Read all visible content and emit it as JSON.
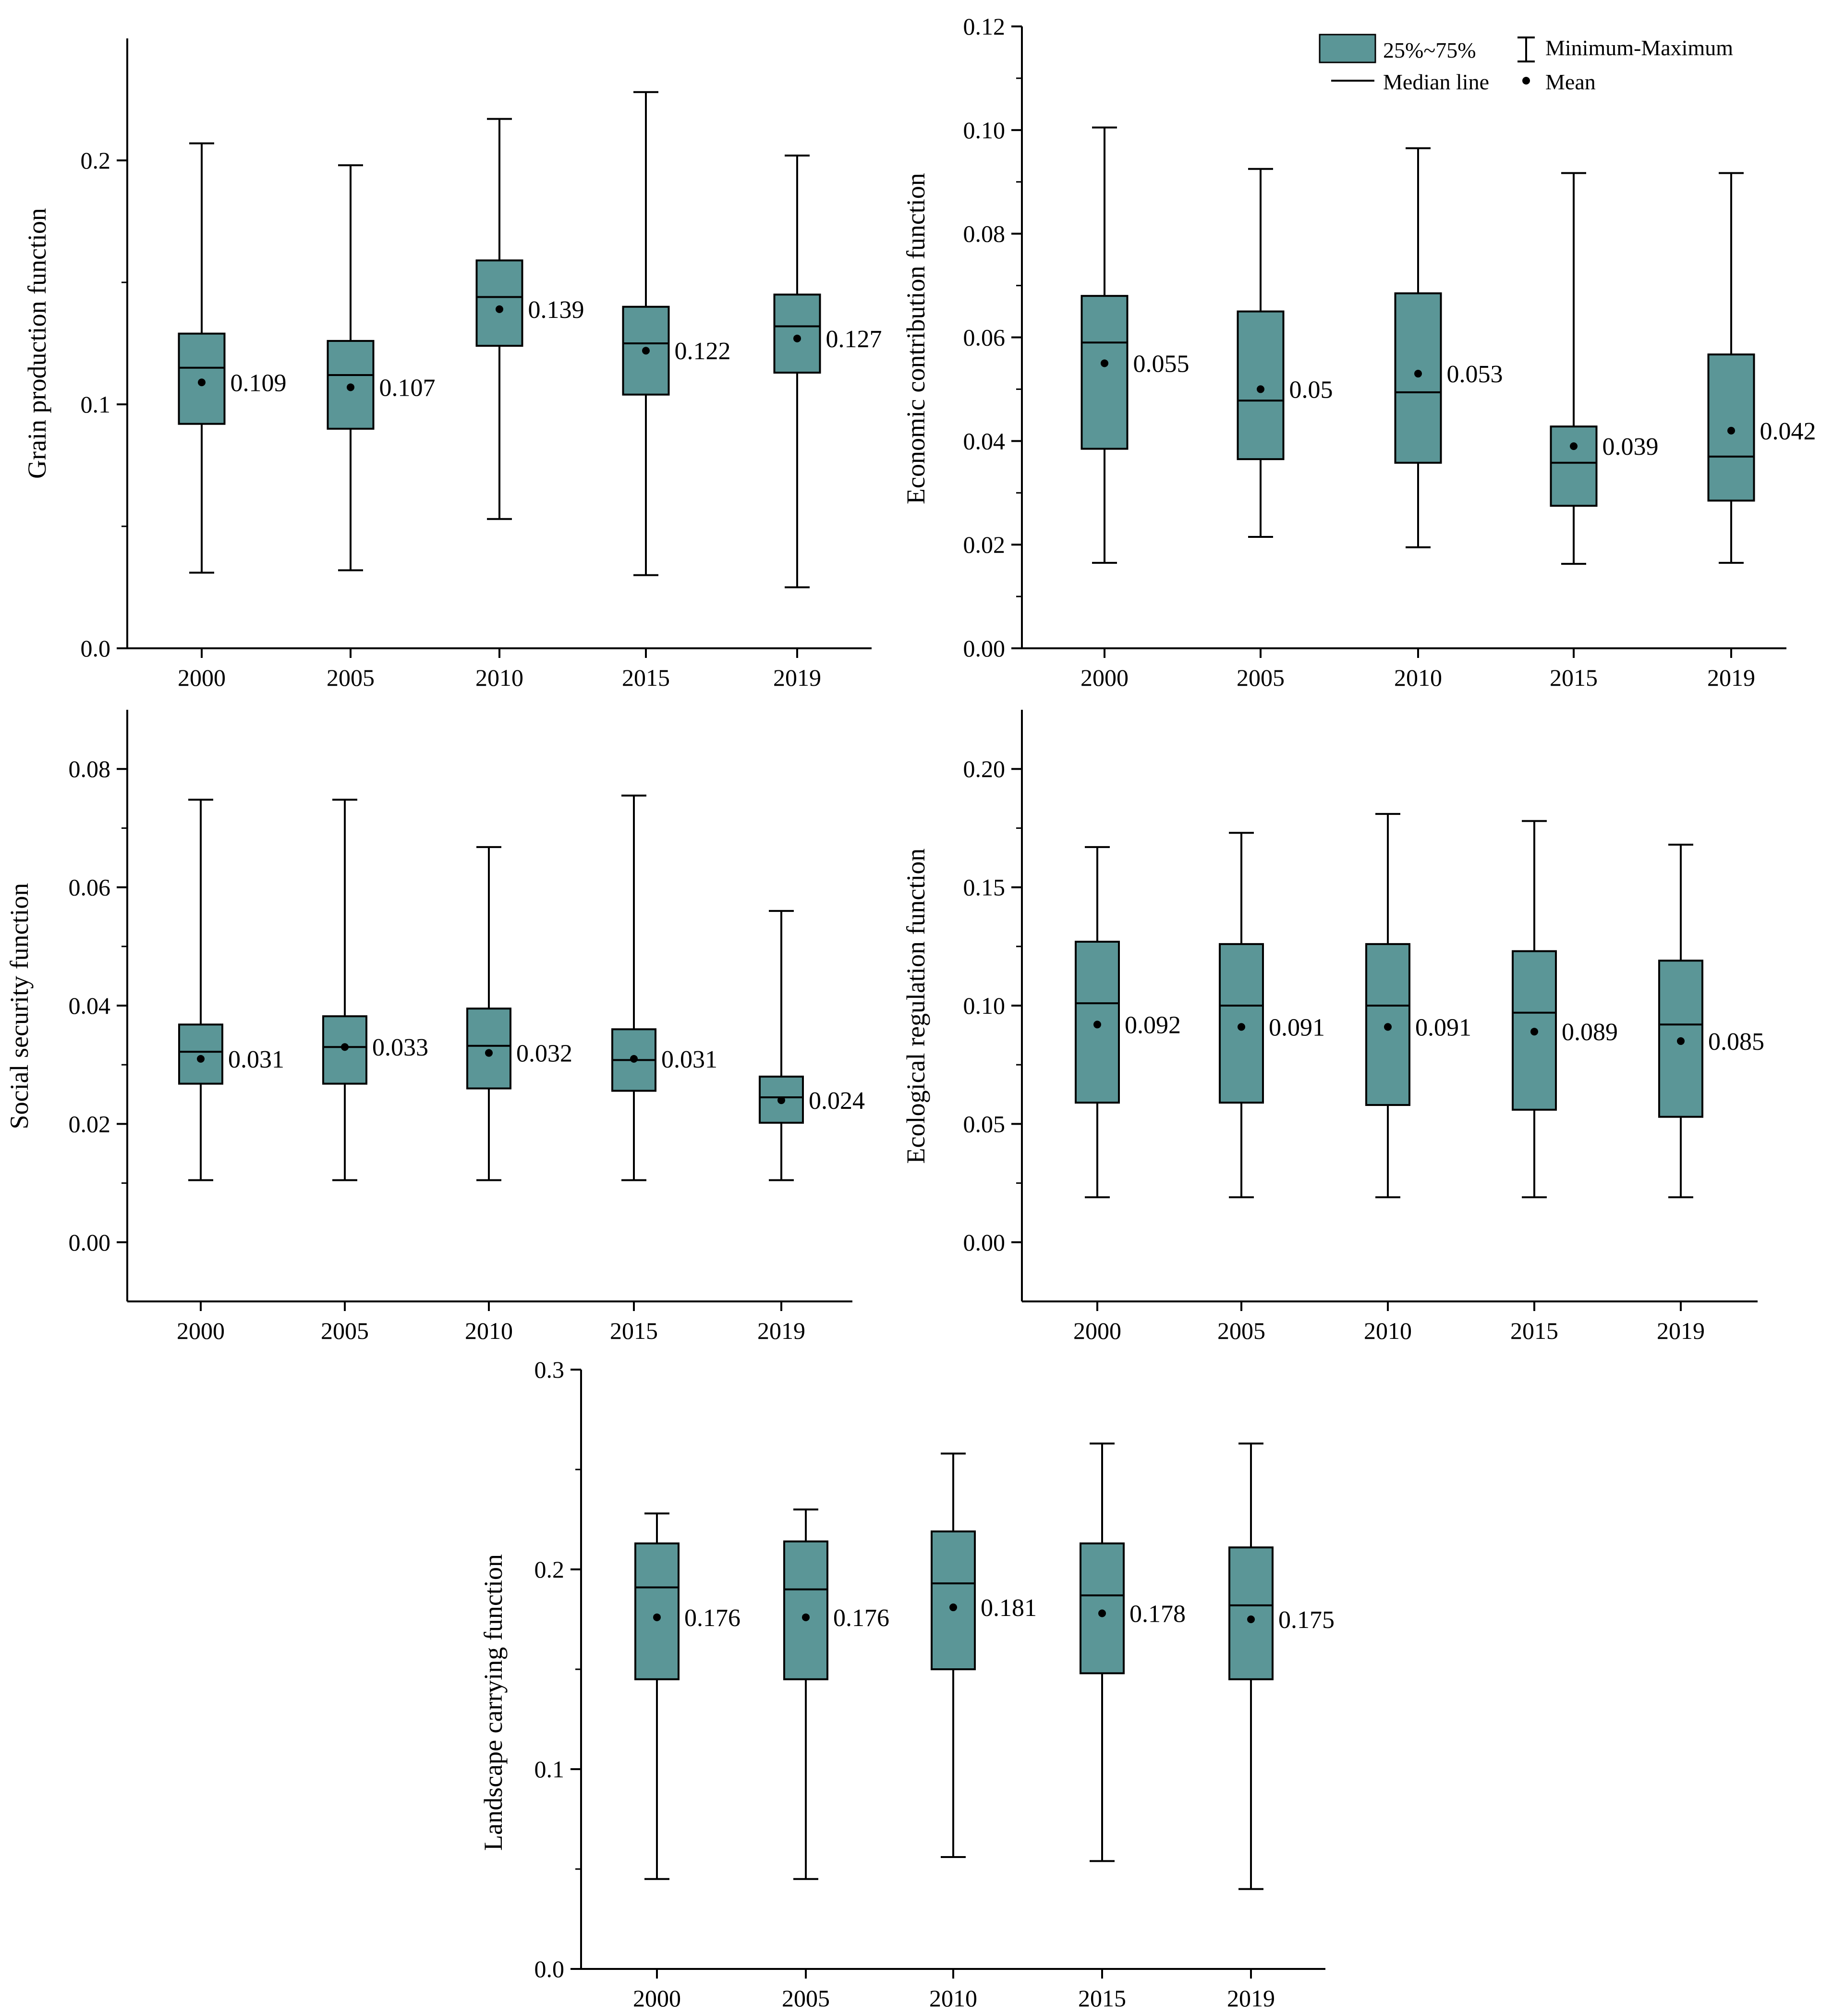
{
  "colors": {
    "box_fill": "#5B9697",
    "stroke": "#000000",
    "background": "#ffffff"
  },
  "legend": {
    "box_label": "25%~75%",
    "range_label": "Minimum-Maximum",
    "median_label": "Median line",
    "mean_label": "Mean"
  },
  "chart_data": [
    {
      "type": "box",
      "ylabel": "Grain production function",
      "categories": [
        "2000",
        "2005",
        "2010",
        "2015",
        "2019"
      ],
      "ylim": [
        0,
        0.25
      ],
      "yticks": [
        0.0,
        0.1,
        0.2
      ],
      "ytick_labels": [
        "0.0",
        "0.1",
        "0.2"
      ],
      "ytick_minor": [
        0.05,
        0.15
      ],
      "boxes": [
        {
          "min": 0.031,
          "q1": 0.092,
          "median": 0.115,
          "q3": 0.129,
          "max": 0.207,
          "mean": 0.109,
          "mean_label": "0.109"
        },
        {
          "min": 0.032,
          "q1": 0.09,
          "median": 0.112,
          "q3": 0.126,
          "max": 0.198,
          "mean": 0.107,
          "mean_label": "0.107"
        },
        {
          "min": 0.053,
          "q1": 0.124,
          "median": 0.144,
          "q3": 0.159,
          "max": 0.217,
          "mean": 0.139,
          "mean_label": "0.139"
        },
        {
          "min": 0.03,
          "q1": 0.104,
          "median": 0.125,
          "q3": 0.14,
          "max": 0.228,
          "mean": 0.122,
          "mean_label": "0.122"
        },
        {
          "min": 0.025,
          "q1": 0.113,
          "median": 0.132,
          "q3": 0.145,
          "max": 0.202,
          "mean": 0.127,
          "mean_label": "0.127"
        }
      ]
    },
    {
      "type": "box",
      "ylabel": "Economic contribution function",
      "categories": [
        "2000",
        "2005",
        "2010",
        "2015",
        "2019"
      ],
      "ylim": [
        0,
        0.12
      ],
      "yticks": [
        0.0,
        0.02,
        0.04,
        0.06,
        0.08,
        0.1,
        0.12
      ],
      "ytick_labels": [
        "0.00",
        "0.02",
        "0.04",
        "0.06",
        "0.08",
        "0.10",
        "0.12"
      ],
      "ytick_minor": [
        0.01,
        0.03,
        0.05,
        0.07,
        0.09,
        0.11
      ],
      "boxes": [
        {
          "min": 0.0165,
          "q1": 0.0385,
          "median": 0.059,
          "q3": 0.068,
          "max": 0.1005,
          "mean": 0.055,
          "mean_label": "0.055"
        },
        {
          "min": 0.0215,
          "q1": 0.0365,
          "median": 0.0478,
          "q3": 0.065,
          "max": 0.0925,
          "mean": 0.05,
          "mean_label": "0.05"
        },
        {
          "min": 0.0195,
          "q1": 0.0358,
          "median": 0.0494,
          "q3": 0.0685,
          "max": 0.0965,
          "mean": 0.053,
          "mean_label": "0.053"
        },
        {
          "min": 0.0163,
          "q1": 0.0275,
          "median": 0.0358,
          "q3": 0.0428,
          "max": 0.0917,
          "mean": 0.039,
          "mean_label": "0.039"
        },
        {
          "min": 0.0165,
          "q1": 0.0285,
          "median": 0.037,
          "q3": 0.0567,
          "max": 0.0917,
          "mean": 0.042,
          "mean_label": "0.042"
        }
      ]
    },
    {
      "type": "box",
      "ylabel": "Social security function",
      "categories": [
        "2000",
        "2005",
        "2010",
        "2015",
        "2019"
      ],
      "ylim": [
        -0.01,
        0.09
      ],
      "yticks": [
        0.0,
        0.02,
        0.04,
        0.06,
        0.08
      ],
      "ytick_labels": [
        "0.00",
        "0.02",
        "0.04",
        "0.06",
        "0.08"
      ],
      "ytick_minor": [
        0.01,
        0.03,
        0.05,
        0.07
      ],
      "boxes": [
        {
          "min": 0.0105,
          "q1": 0.0268,
          "median": 0.0322,
          "q3": 0.0368,
          "max": 0.0748,
          "mean": 0.031,
          "mean_label": "0.031"
        },
        {
          "min": 0.0105,
          "q1": 0.0268,
          "median": 0.033,
          "q3": 0.0382,
          "max": 0.0748,
          "mean": 0.033,
          "mean_label": "0.033"
        },
        {
          "min": 0.0105,
          "q1": 0.026,
          "median": 0.0332,
          "q3": 0.0395,
          "max": 0.0668,
          "mean": 0.032,
          "mean_label": "0.032"
        },
        {
          "min": 0.0105,
          "q1": 0.0256,
          "median": 0.0308,
          "q3": 0.036,
          "max": 0.0755,
          "mean": 0.031,
          "mean_label": "0.031"
        },
        {
          "min": 0.0105,
          "q1": 0.0202,
          "median": 0.0245,
          "q3": 0.028,
          "max": 0.056,
          "mean": 0.024,
          "mean_label": "0.024"
        }
      ]
    },
    {
      "type": "box",
      "ylabel": "Ecological regulation function",
      "categories": [
        "2000",
        "2005",
        "2010",
        "2015",
        "2019"
      ],
      "ylim": [
        -0.025,
        0.225
      ],
      "yticks": [
        0.0,
        0.05,
        0.1,
        0.15,
        0.2
      ],
      "ytick_labels": [
        "0.00",
        "0.05",
        "0.10",
        "0.15",
        "0.20"
      ],
      "ytick_minor": [
        0.025,
        0.075,
        0.125,
        0.175
      ],
      "boxes": [
        {
          "min": 0.019,
          "q1": 0.059,
          "median": 0.101,
          "q3": 0.127,
          "max": 0.167,
          "mean": 0.092,
          "mean_label": "0.092"
        },
        {
          "min": 0.019,
          "q1": 0.059,
          "median": 0.1,
          "q3": 0.126,
          "max": 0.173,
          "mean": 0.091,
          "mean_label": "0.091"
        },
        {
          "min": 0.019,
          "q1": 0.058,
          "median": 0.1,
          "q3": 0.126,
          "max": 0.181,
          "mean": 0.091,
          "mean_label": "0.091"
        },
        {
          "min": 0.019,
          "q1": 0.056,
          "median": 0.097,
          "q3": 0.123,
          "max": 0.178,
          "mean": 0.089,
          "mean_label": "0.089"
        },
        {
          "min": 0.019,
          "q1": 0.053,
          "median": 0.092,
          "q3": 0.119,
          "max": 0.168,
          "mean": 0.085,
          "mean_label": "0.085"
        }
      ]
    },
    {
      "type": "box",
      "ylabel": "Landscape carrying function",
      "categories": [
        "2000",
        "2005",
        "2010",
        "2015",
        "2019"
      ],
      "ylim": [
        0,
        0.3
      ],
      "yticks": [
        0.0,
        0.1,
        0.2,
        0.3
      ],
      "ytick_labels": [
        "0.0",
        "0.1",
        "0.2",
        "0.3"
      ],
      "ytick_minor": [
        0.05,
        0.15,
        0.25
      ],
      "boxes": [
        {
          "min": 0.045,
          "q1": 0.145,
          "median": 0.191,
          "q3": 0.213,
          "max": 0.228,
          "mean": 0.176,
          "mean_label": "0.176"
        },
        {
          "min": 0.045,
          "q1": 0.145,
          "median": 0.19,
          "q3": 0.214,
          "max": 0.23,
          "mean": 0.176,
          "mean_label": "0.176"
        },
        {
          "min": 0.056,
          "q1": 0.15,
          "median": 0.193,
          "q3": 0.219,
          "max": 0.258,
          "mean": 0.181,
          "mean_label": "0.181"
        },
        {
          "min": 0.054,
          "q1": 0.148,
          "median": 0.187,
          "q3": 0.213,
          "max": 0.263,
          "mean": 0.178,
          "mean_label": "0.178"
        },
        {
          "min": 0.04,
          "q1": 0.145,
          "median": 0.182,
          "q3": 0.211,
          "max": 0.263,
          "mean": 0.175,
          "mean_label": "0.175"
        }
      ]
    }
  ]
}
